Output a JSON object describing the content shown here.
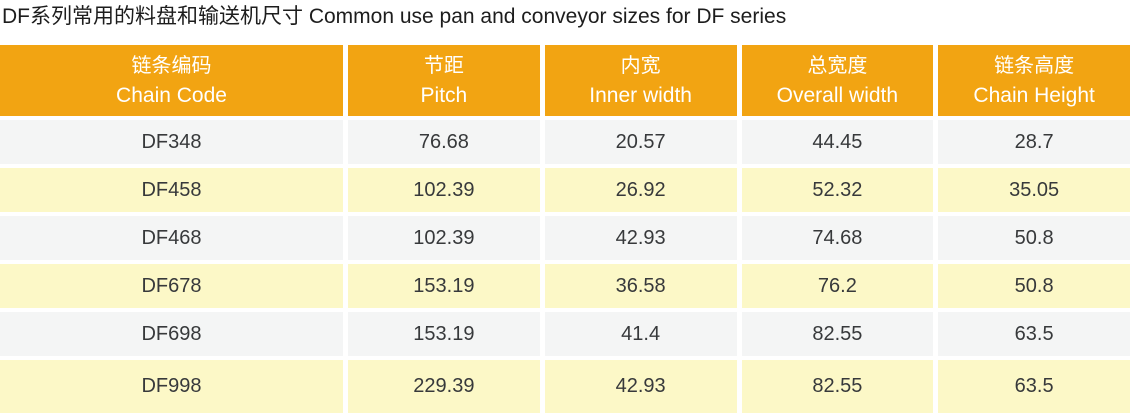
{
  "chart_data": {
    "type": "table",
    "title": "DF系列常用的料盘和输送机尺寸 Common use pan and conveyor sizes for DF series",
    "columns": [
      {
        "zh": "链条编码",
        "en": "Chain Code"
      },
      {
        "zh": "节距",
        "en": "Pitch"
      },
      {
        "zh": "内宽",
        "en": "Inner width"
      },
      {
        "zh": "总宽度",
        "en": "Overall width"
      },
      {
        "zh": "链条高度",
        "en": "Chain Height"
      }
    ],
    "rows": [
      [
        "DF348",
        76.68,
        20.57,
        44.45,
        28.7
      ],
      [
        "DF458",
        102.39,
        26.92,
        52.32,
        35.05
      ],
      [
        "DF468",
        102.39,
        42.93,
        74.68,
        50.8
      ],
      [
        "DF678",
        153.19,
        36.58,
        76.2,
        50.8
      ],
      [
        "DF698",
        153.19,
        41.4,
        82.55,
        63.5
      ],
      [
        "DF998",
        229.39,
        42.93,
        82.55,
        63.5
      ]
    ],
    "layout": {
      "header_rows": 1,
      "row_striping": [
        "gray",
        "yellow"
      ],
      "alignment": "center"
    }
  },
  "colors": {
    "header_bg": "#F2A412",
    "header_text": "#FFFFFF",
    "row_gray": "#F4F5F5",
    "row_yellow": "#FCF8C7",
    "cell_text": "#37393B",
    "title_text": "#1D1D1D"
  }
}
